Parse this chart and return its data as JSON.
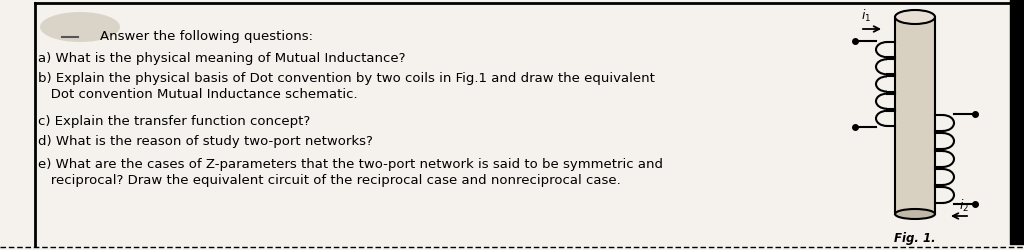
{
  "background_color": "#e8e4dc",
  "page_bg": "#f5f2ee",
  "border_color": "#000000",
  "text_color": "#000000",
  "title": "Answer the following questions:",
  "q_a": "a) What is the physical meaning of Mutual Inductance?",
  "q_b1": "b) Explain the physical basis of Dot convention by two coils in Fig.1 and draw the equivalent",
  "q_b2": "   Dot convention Mutual Inductance schematic.",
  "q_c": "c) Explain the transfer function concept?",
  "q_d": "d) What is the reason of study two-port networks?",
  "q_e1": "e) What are the cases of Z-parameters that the two-port network is said to be symmetric and",
  "q_e2": "   reciprocal? Draw the equivalent circuit of the reciprocal case and nonreciprocal case.",
  "fig_label": "Fig. 1.",
  "font_size_main": 9.5,
  "font_size_fig": 8.5
}
